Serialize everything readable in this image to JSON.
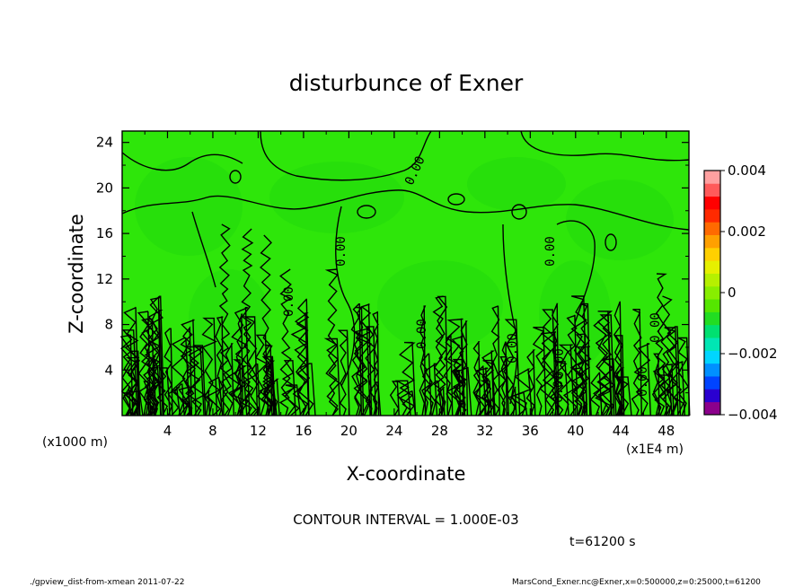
{
  "chart_data": {
    "type": "heatmap",
    "title": "disturbunce of Exner",
    "xlabel": "X-coordinate",
    "ylabel": "Z-coordinate",
    "x_ticks": [
      "4",
      "8",
      "12",
      "16",
      "20",
      "24",
      "28",
      "32",
      "36",
      "40",
      "44",
      "48"
    ],
    "x_range": [
      0,
      50
    ],
    "x_unit_label": "(x1E4 m)",
    "y_ticks": [
      "4",
      "8",
      "12",
      "16",
      "20",
      "24"
    ],
    "y_range": [
      0,
      25
    ],
    "y_unit_label": "(x1000 m)",
    "colorbar": {
      "min": -0.004,
      "max": 0.004,
      "ticks": [
        "0.004",
        "0.002",
        "0",
        "−0.002",
        "−0.004"
      ],
      "colors": [
        "#8b008b",
        "#2a00d0",
        "#0044ff",
        "#0090ff",
        "#00d5ff",
        "#00e6b4",
        "#00e070",
        "#22dd22",
        "#55e600",
        "#88ee00",
        "#b6f000",
        "#e6f000",
        "#ffd000",
        "#ffa000",
        "#ff6a00",
        "#ff2a00",
        "#ff0000",
        "#ff5a5a",
        "#ffa0a0"
      ]
    },
    "contour_labels": [
      "0.00",
      "0.00",
      "0.00",
      "0.00",
      "0.00",
      "0.00",
      "0.00",
      "0.00",
      "0.00",
      "0.00"
    ],
    "contour_interval_text": "CONTOUR INTERVAL = 1.000E-03"
  },
  "footer": {
    "time": "t=61200 s",
    "left_note": "./gpview_dist-from-xmean  2011-07-22",
    "right_note": "MarsCond_Exner.nc@Exner,x=0:500000,z=0:25000,t=61200"
  },
  "colors": {
    "field": "#2ee60a",
    "field_dark": "#1fd80e",
    "contour": "#000000"
  }
}
